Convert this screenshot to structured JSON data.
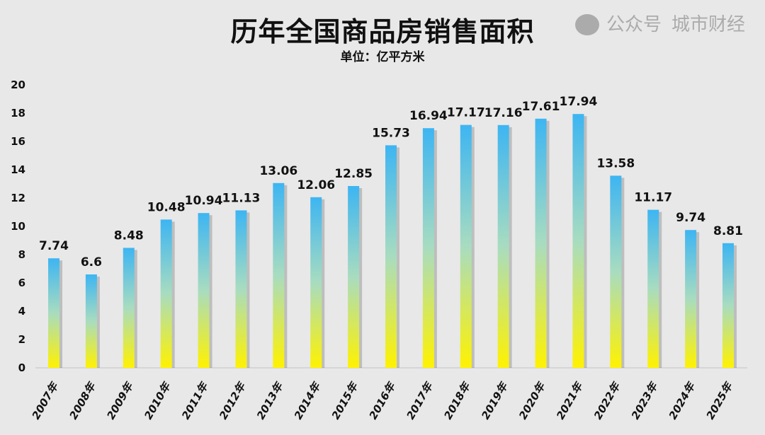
{
  "chart_data": {
    "type": "bar",
    "title": "历年全国商品房销售面积",
    "subtitle": "单位：亿平方米",
    "categories": [
      "2007年",
      "2008年",
      "2009年",
      "2010年",
      "2011年",
      "2012年",
      "2013年",
      "2014年",
      "2015年",
      "2016年",
      "2017年",
      "2018年",
      "2019年",
      "2020年",
      "2021年",
      "2022年",
      "2023年",
      "2024年",
      "2025年"
    ],
    "values": [
      7.74,
      6.6,
      8.48,
      10.48,
      10.94,
      11.13,
      13.06,
      12.06,
      12.85,
      15.73,
      16.94,
      17.17,
      17.16,
      17.61,
      17.94,
      13.58,
      11.17,
      9.74,
      8.81
    ],
    "data_labels": [
      "7.74",
      "6.6",
      "8.48",
      "10.48",
      "10.94",
      "11.13",
      "13.06",
      "12.06",
      "12.85",
      "15.73",
      "16.94",
      "17.17",
      "17.16",
      "17.61",
      "17.94",
      "13.58",
      "11.17",
      "9.74",
      "8.81"
    ],
    "ylim": [
      0,
      20
    ],
    "yticks": [
      "0",
      "2",
      "4",
      "6",
      "8",
      "10",
      "12",
      "14",
      "16",
      "18",
      "20"
    ],
    "grid": false,
    "legend": "none",
    "colors": {
      "bar_top": "#3db5f2",
      "bar_mid": "#a8dcc0",
      "bar_bottom": "#fff200",
      "background": "#e8e8e8"
    }
  },
  "watermark": {
    "left": "公众号",
    "right": "城市财经",
    "icon": "wechat-icon"
  }
}
